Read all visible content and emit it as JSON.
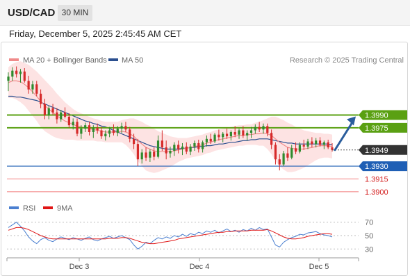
{
  "header": {
    "symbol": "USD/CAD",
    "timeframe": "30 MIN",
    "datetime": "Friday, December 5, 2025 2:45:45 AM CET"
  },
  "legend": {
    "ma20": "MA 20 + Bollinger Bands",
    "ma50": "MA 50",
    "credit": "Research © 2025 Trading Central"
  },
  "rsi_legend": {
    "rsi": "RSI",
    "ma9": "9MA"
  },
  "colors": {
    "up_candle": "#2e8b2e",
    "down_candle": "#d62a2a",
    "ma20": "#f08a8a",
    "ma50": "#2b4f8f",
    "bollinger_fill": "#fde0e0",
    "resistance": "#5aa012",
    "support": "#1f5fb5",
    "support_light": "#f27b7b",
    "current_price_tag": "#333333",
    "arrow": "#2a5d9c",
    "rsi": "#4a7fd0",
    "rsi_ma": "#e01515"
  },
  "chart_data": [
    {
      "type": "candlestick",
      "title": "USD/CAD 30 MIN",
      "x_ticks": [
        "Dec 3",
        "Dec 4",
        "Dec 5"
      ],
      "series": [
        {
          "name": "MA 20 + Bollinger Bands"
        },
        {
          "name": "MA 50"
        }
      ],
      "ohlc": [
        [
          1.403,
          1.404,
          1.4018,
          1.4035
        ],
        [
          1.4035,
          1.4046,
          1.403,
          1.4042
        ],
        [
          1.4042,
          1.4047,
          1.4034,
          1.4038
        ],
        [
          1.4038,
          1.4044,
          1.4028,
          1.4041
        ],
        [
          1.4041,
          1.4045,
          1.4028,
          1.403
        ],
        [
          1.403,
          1.4036,
          1.4015,
          1.402
        ],
        [
          1.402,
          1.403,
          1.4015,
          1.4026
        ],
        [
          1.4026,
          1.403,
          1.4012,
          1.4015
        ],
        [
          1.4015,
          1.402,
          1.3998,
          1.4003
        ],
        [
          1.4003,
          1.4009,
          1.3985,
          1.399
        ],
        [
          1.399,
          1.4001,
          1.3985,
          1.3998
        ],
        [
          1.3998,
          1.4003,
          1.399,
          1.3993
        ],
        [
          1.3993,
          1.3998,
          1.398,
          1.3985
        ],
        [
          1.3985,
          1.3996,
          1.3982,
          1.3993
        ],
        [
          1.3993,
          1.3999,
          1.3986,
          1.3988
        ],
        [
          1.3988,
          1.3992,
          1.3975,
          1.3978
        ],
        [
          1.3978,
          1.3986,
          1.3973,
          1.3982
        ],
        [
          1.3982,
          1.3986,
          1.3965,
          1.3968
        ],
        [
          1.3968,
          1.3978,
          1.3962,
          1.3974
        ],
        [
          1.3974,
          1.3981,
          1.397,
          1.3978
        ],
        [
          1.3978,
          1.3982,
          1.3966,
          1.397
        ],
        [
          1.397,
          1.3978,
          1.3963,
          1.3975
        ],
        [
          1.3975,
          1.398,
          1.3968,
          1.3972
        ],
        [
          1.3972,
          1.3976,
          1.3962,
          1.3965
        ],
        [
          1.3965,
          1.3972,
          1.396,
          1.3968
        ],
        [
          1.3968,
          1.3976,
          1.3964,
          1.3972
        ],
        [
          1.3972,
          1.3979,
          1.3966,
          1.3969
        ],
        [
          1.3969,
          1.3977,
          1.3965,
          1.3974
        ],
        [
          1.3974,
          1.3981,
          1.3969,
          1.3977
        ],
        [
          1.3977,
          1.3982,
          1.397,
          1.3973
        ],
        [
          1.3973,
          1.3976,
          1.3958,
          1.3962
        ],
        [
          1.3962,
          1.3968,
          1.395,
          1.3956
        ],
        [
          1.3956,
          1.3962,
          1.393,
          1.3938
        ],
        [
          1.3938,
          1.395,
          1.3933,
          1.3946
        ],
        [
          1.3946,
          1.3952,
          1.3936,
          1.394
        ],
        [
          1.394,
          1.395,
          1.3935,
          1.3947
        ],
        [
          1.3947,
          1.3952,
          1.3937,
          1.3941
        ],
        [
          1.3941,
          1.3966,
          1.3939,
          1.396
        ],
        [
          1.396,
          1.3972,
          1.3948,
          1.3952
        ],
        [
          1.3952,
          1.396,
          1.3938,
          1.3945
        ],
        [
          1.3945,
          1.3953,
          1.394,
          1.3948
        ],
        [
          1.3948,
          1.3958,
          1.3942,
          1.3955
        ],
        [
          1.3955,
          1.396,
          1.3945,
          1.395
        ],
        [
          1.395,
          1.3957,
          1.3943,
          1.3953
        ],
        [
          1.3953,
          1.3958,
          1.3944,
          1.3947
        ],
        [
          1.3947,
          1.3956,
          1.3943,
          1.3953
        ],
        [
          1.3953,
          1.396,
          1.3948,
          1.3957
        ],
        [
          1.3957,
          1.3961,
          1.3946,
          1.395
        ],
        [
          1.395,
          1.396,
          1.3946,
          1.3958
        ],
        [
          1.3958,
          1.3966,
          1.3953,
          1.3962
        ],
        [
          1.3962,
          1.3968,
          1.3956,
          1.3959
        ],
        [
          1.3959,
          1.3969,
          1.3957,
          1.3967
        ],
        [
          1.3967,
          1.3973,
          1.396,
          1.3964
        ],
        [
          1.3964,
          1.397,
          1.3958,
          1.3968
        ],
        [
          1.3968,
          1.3974,
          1.3962,
          1.3965
        ],
        [
          1.3965,
          1.3972,
          1.396,
          1.397
        ],
        [
          1.397,
          1.3977,
          1.3964,
          1.3967
        ],
        [
          1.3967,
          1.3974,
          1.3962,
          1.3972
        ],
        [
          1.3972,
          1.3977,
          1.3963,
          1.3966
        ],
        [
          1.3966,
          1.3972,
          1.396,
          1.3969
        ],
        [
          1.3969,
          1.3976,
          1.3963,
          1.3972
        ],
        [
          1.3972,
          1.3979,
          1.3968,
          1.3976
        ],
        [
          1.3976,
          1.3982,
          1.397,
          1.3973
        ],
        [
          1.3973,
          1.398,
          1.3968,
          1.3977
        ],
        [
          1.3977,
          1.398,
          1.3965,
          1.3969
        ],
        [
          1.3969,
          1.3973,
          1.395,
          1.3955
        ],
        [
          1.3955,
          1.3958,
          1.3932,
          1.3938
        ],
        [
          1.3938,
          1.3944,
          1.3925,
          1.3932
        ],
        [
          1.3932,
          1.3948,
          1.393,
          1.3945
        ],
        [
          1.3945,
          1.3952,
          1.3936,
          1.394
        ],
        [
          1.394,
          1.3955,
          1.3938,
          1.3951
        ],
        [
          1.3951,
          1.3958,
          1.3944,
          1.3947
        ],
        [
          1.3947,
          1.3958,
          1.3945,
          1.3955
        ],
        [
          1.3955,
          1.3961,
          1.3949,
          1.3953
        ],
        [
          1.3953,
          1.3962,
          1.395,
          1.3959
        ],
        [
          1.3959,
          1.3964,
          1.3952,
          1.3956
        ],
        [
          1.3956,
          1.3963,
          1.3952,
          1.396
        ],
        [
          1.396,
          1.3964,
          1.3953,
          1.3955
        ],
        [
          1.3955,
          1.396,
          1.395,
          1.3958
        ],
        [
          1.3958,
          1.3961,
          1.395,
          1.3952
        ],
        [
          1.3952,
          1.3957,
          1.3947,
          1.3949
        ]
      ],
      "ma20": [
        1.4028,
        1.403,
        1.403,
        1.4029,
        1.4026,
        1.4022,
        1.4017,
        1.4012,
        1.4006,
        1.4001,
        1.3997,
        1.3993,
        1.3989,
        1.3986,
        1.3983,
        1.3981,
        1.3979,
        1.3977,
        1.3976,
        1.3975,
        1.3974,
        1.3973,
        1.3972,
        1.3971,
        1.397,
        1.397,
        1.397,
        1.397,
        1.3971,
        1.397,
        1.3968,
        1.3965,
        1.396,
        1.3956,
        1.3952,
        1.395,
        1.3948,
        1.3947,
        1.3947,
        1.3947,
        1.3947,
        1.3948,
        1.3949,
        1.395,
        1.3951,
        1.3952,
        1.3953,
        1.3954,
        1.3955,
        1.3957,
        1.3958,
        1.396,
        1.3961,
        1.3962,
        1.3963,
        1.3964,
        1.3965,
        1.3966,
        1.3966,
        1.3967,
        1.3967,
        1.3968,
        1.3968,
        1.3969,
        1.3968,
        1.3966,
        1.3962,
        1.3958,
        1.3955,
        1.3952,
        1.3951,
        1.395,
        1.395,
        1.395,
        1.3951,
        1.3952,
        1.3953,
        1.3954,
        1.3954,
        1.3954,
        1.3953
      ],
      "ma50": [
        1.4012,
        1.4012,
        1.4011,
        1.4011,
        1.401,
        1.4009,
        1.4008,
        1.4007,
        1.4005,
        1.4003,
        1.4001,
        1.3999,
        1.3997,
        1.3995,
        1.3993,
        1.3991,
        1.3989,
        1.3987,
        1.3985,
        1.3983,
        1.3982,
        1.398,
        1.3979,
        1.3977,
        1.3976,
        1.3974,
        1.3972,
        1.397,
        1.3968,
        1.3966,
        1.3964,
        1.3962,
        1.396,
        1.3958,
        1.3956,
        1.3954,
        1.3953,
        1.3952,
        1.3951,
        1.395,
        1.395,
        1.395,
        1.395,
        1.3951,
        1.3951,
        1.3952,
        1.3952,
        1.3953,
        1.3953,
        1.3954,
        1.3954,
        1.3955,
        1.3956,
        1.3956,
        1.3957,
        1.3958,
        1.3958,
        1.3959,
        1.396,
        1.396,
        1.3961,
        1.3961,
        1.3962,
        1.3962,
        1.3962,
        1.3961,
        1.396,
        1.3959,
        1.3958,
        1.3957,
        1.3957,
        1.3956,
        1.3956,
        1.3956,
        1.3956,
        1.3956,
        1.3956,
        1.3956,
        1.3956,
        1.3956,
        1.3955
      ],
      "bb_width": [
        0.0018,
        0.002,
        0.0022,
        0.0024,
        0.0025,
        0.0027,
        0.0028,
        0.0029,
        0.003,
        0.003,
        0.0029,
        0.0028,
        0.0026,
        0.0024,
        0.0022,
        0.002,
        0.0018,
        0.0017,
        0.0016,
        0.0015,
        0.0014,
        0.0013,
        0.0013,
        0.0012,
        0.0012,
        0.0012,
        0.0012,
        0.0012,
        0.0013,
        0.0015,
        0.0018,
        0.0021,
        0.0024,
        0.0026,
        0.0027,
        0.0027,
        0.0026,
        0.0024,
        0.0022,
        0.002,
        0.0018,
        0.0016,
        0.0014,
        0.0013,
        0.0012,
        0.0012,
        0.0012,
        0.0012,
        0.0012,
        0.0012,
        0.0012,
        0.0012,
        0.0012,
        0.0012,
        0.0012,
        0.0012,
        0.0012,
        0.0012,
        0.0012,
        0.0012,
        0.0012,
        0.0013,
        0.0014,
        0.0015,
        0.0018,
        0.0022,
        0.0026,
        0.0028,
        0.0029,
        0.0029,
        0.0028,
        0.0026,
        0.0024,
        0.0022,
        0.002,
        0.0018,
        0.0016,
        0.0015,
        0.0014,
        0.0014,
        0.0014
      ],
      "y_range": [
        1.3895,
        1.4045
      ],
      "levels": [
        {
          "price": 1.399,
          "label": "1.3990",
          "kind": "resistance"
        },
        {
          "price": 1.3975,
          "label": "1.3975",
          "kind": "resistance"
        },
        {
          "price": 1.393,
          "label": "1.3930",
          "kind": "support"
        },
        {
          "price": 1.3915,
          "label": "1.3915",
          "kind": "support-light"
        },
        {
          "price": 1.39,
          "label": "1.3900",
          "kind": "support-light"
        }
      ],
      "current_price": {
        "price": 1.3949,
        "label": "1.3949"
      },
      "target_arrow": {
        "from": 1.3949,
        "to": 1.399
      }
    },
    {
      "type": "line",
      "title": "RSI",
      "series": [
        {
          "name": "RSI",
          "values": [
            62,
            66,
            70,
            64,
            57,
            48,
            42,
            38,
            44,
            47,
            43,
            41,
            45,
            48,
            46,
            44,
            47,
            45,
            43,
            46,
            48,
            44,
            42,
            45,
            47,
            49,
            46,
            48,
            50,
            47,
            44,
            36,
            30,
            34,
            40,
            38,
            43,
            47,
            45,
            48,
            46,
            50,
            48,
            52,
            49,
            53,
            51,
            55,
            53,
            57,
            55,
            58,
            54,
            57,
            60,
            56,
            58,
            55,
            59,
            57,
            61,
            58,
            62,
            59,
            60,
            48,
            36,
            33,
            40,
            44,
            47,
            49,
            52,
            51,
            54,
            55,
            56,
            53,
            51,
            50,
            48
          ]
        },
        {
          "name": "9MA",
          "values": [
            58,
            60,
            62,
            62,
            61,
            59,
            56,
            53,
            50,
            48,
            46,
            45,
            45,
            45,
            45,
            45,
            45,
            45,
            45,
            45,
            45,
            45,
            45,
            45,
            45,
            46,
            46,
            46,
            47,
            47,
            46,
            44,
            42,
            40,
            39,
            38,
            38,
            39,
            40,
            41,
            42,
            43,
            45,
            46,
            47,
            48,
            49,
            50,
            51,
            52,
            53,
            54,
            55,
            55,
            56,
            56,
            57,
            57,
            57,
            57,
            58,
            58,
            58,
            58,
            59,
            57,
            54,
            51,
            48,
            46,
            45,
            45,
            46,
            47,
            49,
            50,
            51,
            52,
            53,
            53,
            52
          ]
        }
      ],
      "y_ticks": [
        30,
        50,
        70
      ],
      "y_range": [
        22,
        78
      ]
    }
  ]
}
